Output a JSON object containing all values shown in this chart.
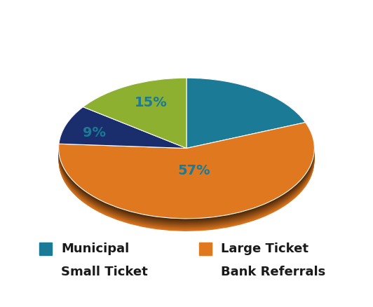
{
  "slices": [
    19,
    57,
    9,
    15
  ],
  "labels": [
    "Municipal",
    "Large Ticket",
    "Small Ticket",
    "Bank Referrals"
  ],
  "colors": [
    "#1b7a96",
    "#e07820",
    "#1a2e6e",
    "#8db030"
  ],
  "dark_colors": [
    "#0d3d4a",
    "#7a3f0a",
    "#0a1530",
    "#4a6010"
  ],
  "legend_labels_left": [
    "Municipal",
    "Small Ticket"
  ],
  "legend_labels_right": [
    "Large Ticket",
    "Bank Referrals"
  ],
  "legend_colors_left": [
    "#1b7a96",
    "#1a2e6e"
  ],
  "legend_colors_right": [
    "#e07820",
    "#8db030"
  ],
  "background_color": "#ffffff",
  "pct_fontsize": 14,
  "legend_fontsize": 13,
  "startangle": 90,
  "depth": 0.18,
  "num_layers": 30,
  "label_color": "#1b7a96"
}
